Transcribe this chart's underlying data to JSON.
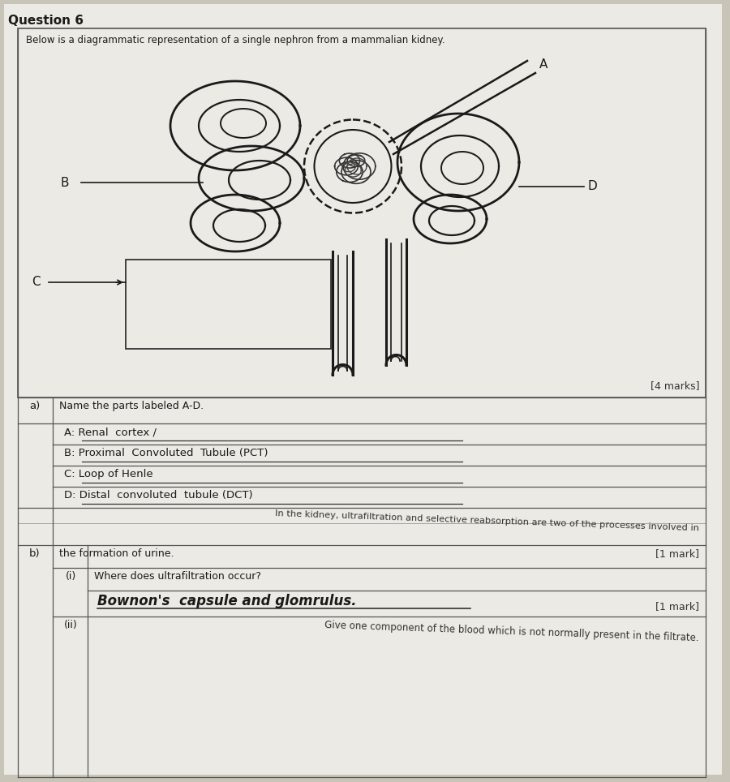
{
  "bg_color": "#c8c4b8",
  "page_bg": "#dedad2",
  "white_bg": "#eceae4",
  "title_text": "Question 6",
  "box_title": "Below is a diagrammatic representation of a single nephron from a mammalian kidney.",
  "marks_4": "[4 marks]",
  "marks_1a": "[1 mark]",
  "marks_1b": "[1 mark]",
  "label_A": "A",
  "label_B": "B",
  "label_C": "C",
  "label_D": "D",
  "part_a_header": "a)",
  "part_a_text": "Name the parts labeled A-D.",
  "answer_A": "A: Renal  cortex /",
  "answer_B": "B: Proximal  Convoluted  Tubule (PCT)",
  "answer_C": "C: Loop of Henle",
  "answer_D": "D: Distal  convoluted  tubule (DCT)",
  "part_b_label": "b)",
  "part_b_overflow": "In the kidney, ultrafiltration and selective reabsorption are two of the processes involved in",
  "part_b_line2": "the formation of urine.",
  "sub_i_label": "(i)",
  "sub_i_text": "Where does ultrafiltration occur?",
  "answer_i": "Bownon's  capsule and glomrulus.",
  "sub_ii_label": "(ii)",
  "sub_ii_text": "Give one component of the blood which is not normally present in the filtrate."
}
